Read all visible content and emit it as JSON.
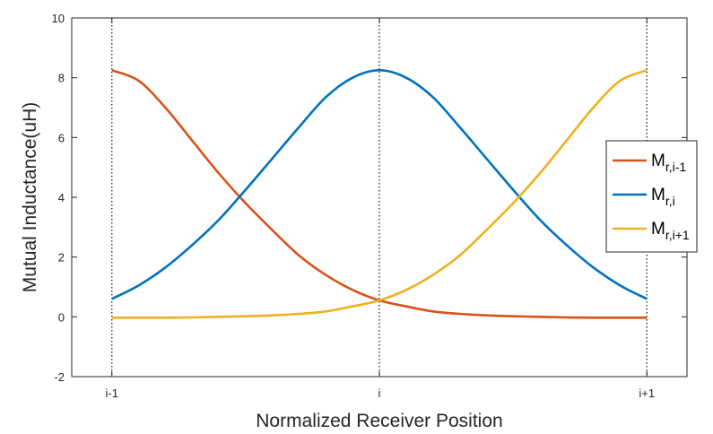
{
  "chart_data": {
    "type": "line",
    "title": "",
    "xlabel": "Normalized Receiver Position",
    "ylabel": "Mutual Inductance(uH)",
    "xlim": [
      -1.15,
      1.15
    ],
    "ylim": [
      -2,
      10
    ],
    "yticks": [
      -2,
      0,
      2,
      4,
      6,
      8,
      10
    ],
    "xticks": [
      {
        "value": -1,
        "label": "i-1"
      },
      {
        "value": 0,
        "label": "i"
      },
      {
        "value": 1,
        "label": "i+1"
      }
    ],
    "vertical_dotted_lines_at": [
      -1,
      0,
      1
    ],
    "grid": false,
    "legend_position": "right",
    "x": [
      -1,
      -0.9,
      -0.8,
      -0.7,
      -0.6,
      -0.5,
      -0.4,
      -0.3,
      -0.2,
      -0.1,
      0,
      0.1,
      0.2,
      0.3,
      0.4,
      0.5,
      0.6,
      0.7,
      0.8,
      0.9,
      1
    ],
    "series": [
      {
        "name": "M_{r,i-1}",
        "name_main": "M",
        "name_sub": "r,i-1",
        "color": "#D95319",
        "values": [
          8.25,
          7.9,
          7.0,
          5.9,
          4.8,
          3.8,
          2.9,
          2.05,
          1.4,
          0.9,
          0.55,
          0.35,
          0.18,
          0.1,
          0.05,
          0.02,
          0.0,
          -0.02,
          -0.03,
          -0.03,
          -0.03
        ]
      },
      {
        "name": "M_{r,i}",
        "name_main": "M",
        "name_sub": "r,i",
        "color": "#0072BD",
        "values": [
          0.6,
          1.05,
          1.65,
          2.4,
          3.25,
          4.25,
          5.3,
          6.35,
          7.35,
          8.0,
          8.25,
          8.0,
          7.35,
          6.35,
          5.3,
          4.25,
          3.25,
          2.4,
          1.65,
          1.05,
          0.6
        ]
      },
      {
        "name": "M_{r,i+1}",
        "name_main": "M",
        "name_sub": "r,i+1",
        "color": "#EDB120",
        "values": [
          -0.03,
          -0.03,
          -0.03,
          -0.02,
          0.0,
          0.02,
          0.05,
          0.1,
          0.18,
          0.35,
          0.55,
          0.9,
          1.4,
          2.05,
          2.9,
          3.8,
          4.8,
          5.9,
          7.0,
          7.9,
          8.25
        ]
      }
    ]
  }
}
